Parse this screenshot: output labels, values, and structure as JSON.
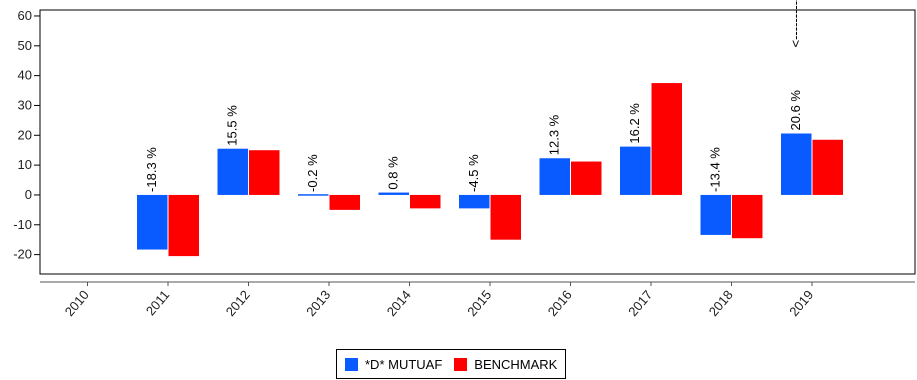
{
  "chart_data": {
    "type": "bar",
    "categories": [
      "2010",
      "2011",
      "2012",
      "2013",
      "2014",
      "2015",
      "2016",
      "2017",
      "2018",
      "2019"
    ],
    "series": [
      {
        "name": "*D* MUTUAF",
        "color": "#0a5bff",
        "values": [
          null,
          -18.3,
          15.5,
          -0.2,
          0.8,
          -4.5,
          12.3,
          16.2,
          -13.4,
          20.6
        ]
      },
      {
        "name": "BENCHMARK",
        "color": "#ff0000",
        "values": [
          null,
          -20.5,
          15.0,
          -5.0,
          -4.5,
          -15.0,
          11.2,
          37.5,
          -14.5,
          18.5
        ]
      }
    ],
    "data_labels": [
      "",
      "-18.3 %",
      "15.5 %",
      "-0.2 %",
      "0.8 %",
      "-4.5 %",
      "12.3 %",
      "16.2 %",
      "-13.4 %",
      "20.6 %"
    ],
    "annotation": "<----------",
    "yticks": [
      60,
      50,
      40,
      30,
      20,
      10,
      0,
      -10,
      -20
    ],
    "ylim": [
      -26.5,
      62
    ],
    "grid": false,
    "legend_position": "bottom"
  }
}
